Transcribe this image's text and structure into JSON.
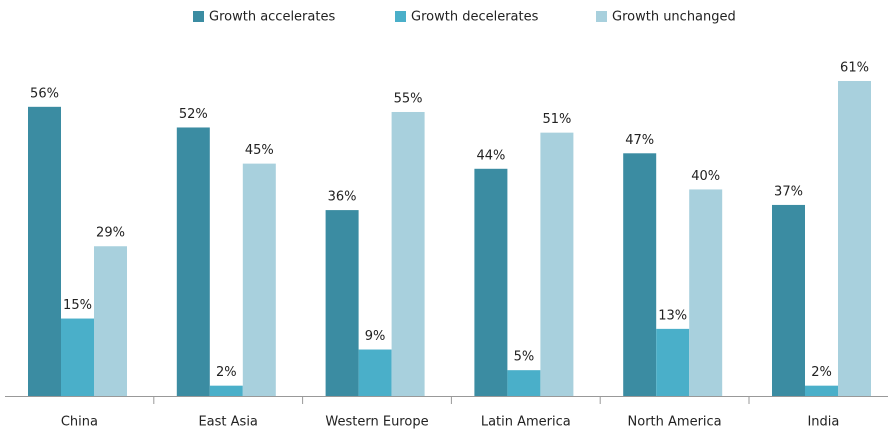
{
  "chart_data": {
    "type": "bar",
    "categories": [
      "China",
      "East Asia",
      "Western Europe",
      "Latin America",
      "North America",
      "India"
    ],
    "series": [
      {
        "name": "Growth accelerates",
        "color": "#3b8ca2",
        "values": [
          56,
          52,
          36,
          44,
          47,
          37
        ],
        "value_labels": [
          "56%",
          "52%",
          "36%",
          "44%",
          "47%",
          "37%"
        ]
      },
      {
        "name": "Growth decelerates",
        "color": "#4aafc9",
        "values": [
          15,
          2,
          9,
          5,
          13,
          2
        ],
        "value_labels": [
          "15%",
          "2%",
          "9%",
          "5%",
          "13%",
          "2%"
        ]
      },
      {
        "name": "Growth unchanged",
        "color": "#a8d0dd",
        "values": [
          29,
          45,
          55,
          51,
          40,
          61
        ],
        "value_labels": [
          "29%",
          "45%",
          "55%",
          "51%",
          "40%",
          "61%"
        ]
      }
    ]
  }
}
